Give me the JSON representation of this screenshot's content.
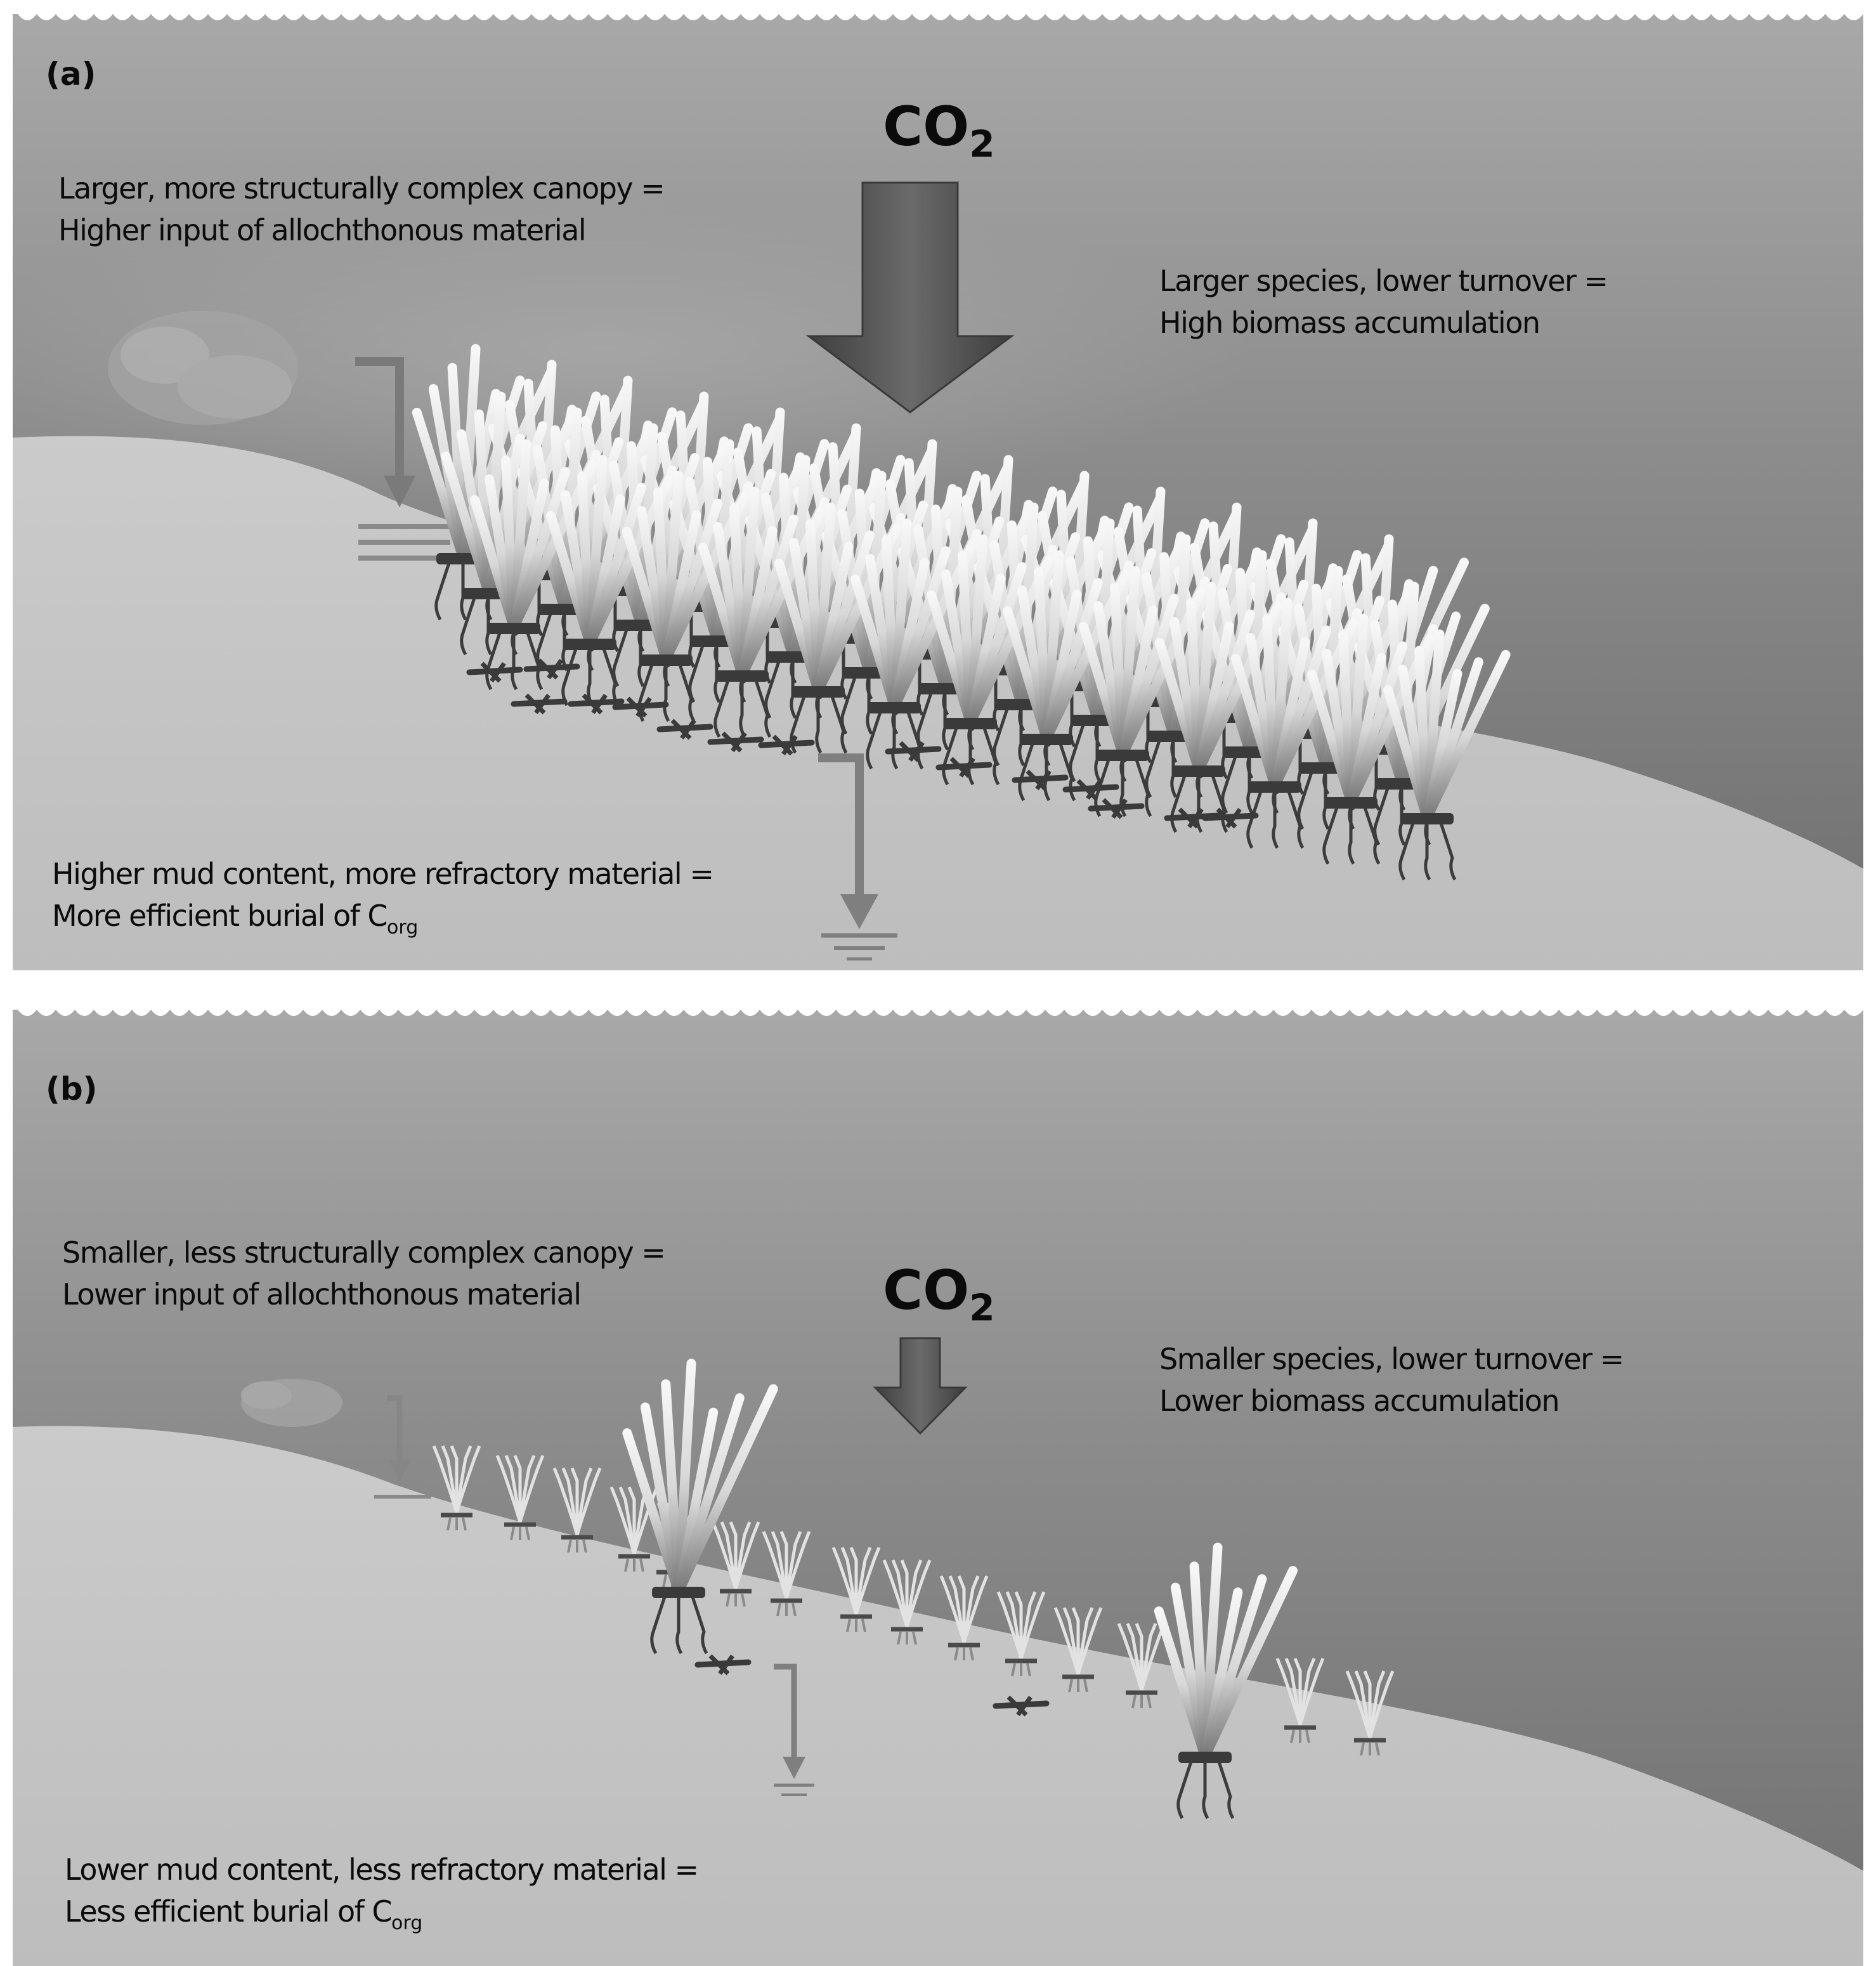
{
  "panel_a": {
    "label": "(a)",
    "co2": "CO",
    "co2_sub": "2",
    "canopy_line1": "Larger, more structurally complex canopy =",
    "canopy_line2": "Higher input of allochthonous material",
    "species_line1": "Larger species, lower turnover =",
    "species_line2": "High biomass accumulation",
    "mud_line1": "Higher mud content, more refractory material =",
    "mud_line2": "More efficient burial of C",
    "mud_sub": "org"
  },
  "panel_b": {
    "label": "(b)",
    "co2": "CO",
    "co2_sub": "2",
    "canopy_line1": "Smaller, less structurally complex canopy =",
    "canopy_line2": "Lower input of allochthonous material",
    "species_line1": "Smaller species, lower turnover =",
    "species_line2": "Lower biomass accumulation",
    "mud_line1": "Lower mud content, less refractory material =",
    "mud_line2": "Less efficient burial of C",
    "mud_sub": "org"
  },
  "colors": {
    "water_top": "#a9a9a9",
    "water_deep": "#7a7a7a",
    "sediment": "#c4c4c4",
    "arrow": "#5a5a5a"
  }
}
